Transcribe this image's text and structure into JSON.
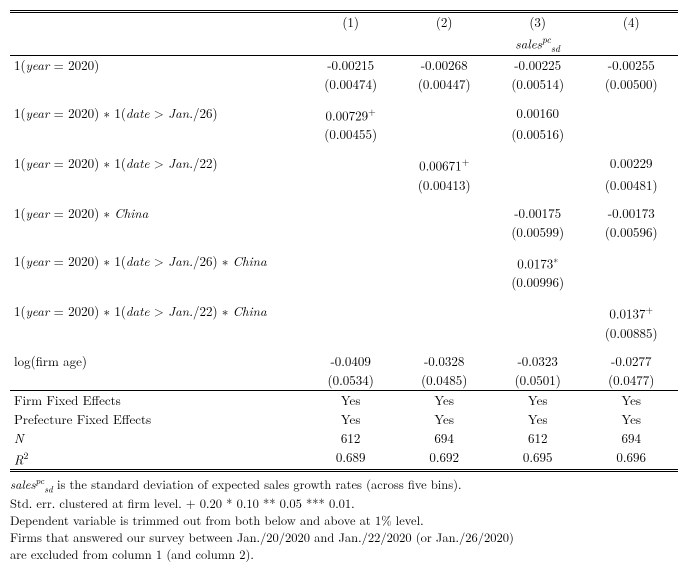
{
  "header": {
    "c1": "(1)",
    "c2": "(2)",
    "c3": "(3)",
    "c4": "(4)",
    "dep_html": "sales<sup style='font-style:italic'>pc</sup><sub>sd</sub>"
  },
  "rows": [
    {
      "label_html": "1(<span class='ital'>year</span> = 2020)",
      "c1": "-0.00215",
      "c2": "-0.00268",
      "c3": "-0.00225",
      "c4": "-0.00255",
      "se1": "(0.00474)",
      "se2": "(0.00447)",
      "se3": "(0.00514)",
      "se4": "(0.00500)"
    },
    {
      "label_html": "1(<span class='ital'>year</span> = 2020) ∗ 1(<span class='ital'>date</span> > <span class='ital'>Jan.</span>/26)",
      "c1": "0.00729<span class='sup'>+</span>",
      "c2": "",
      "c3": "0.00160",
      "c4": "",
      "se1": "(0.00455)",
      "se2": "",
      "se3": "(0.00516)",
      "se4": ""
    },
    {
      "label_html": "1(<span class='ital'>year</span> = 2020) ∗ 1(<span class='ital'>date</span> > <span class='ital'>Jan.</span>/22)",
      "c1": "",
      "c2": "0.00671<span class='sup'>+</span>",
      "c3": "",
      "c4": "0.00229",
      "se1": "",
      "se2": "(0.00413)",
      "se3": "",
      "se4": "(0.00481)"
    },
    {
      "label_html": "1(<span class='ital'>year</span> = 2020) ∗ <span class='ital'>China</span>",
      "c1": "",
      "c2": "",
      "c3": "-0.00175",
      "c4": "-0.00173",
      "se1": "",
      "se2": "",
      "se3": "(0.00599)",
      "se4": "(0.00596)"
    },
    {
      "label_html": "1(<span class='ital'>year</span> = 2020) ∗ 1(<span class='ital'>date</span> > <span class='ital'>Jan.</span>/26) ∗ <span class='ital'>China</span>",
      "c1": "",
      "c2": "",
      "c3": "0.0173<span class='sup'>∗</span>",
      "c4": "",
      "se1": "",
      "se2": "",
      "se3": "(0.00996)",
      "se4": ""
    },
    {
      "label_html": "1(<span class='ital'>year</span> = 2020) ∗ 1(<span class='ital'>date</span> > <span class='ital'>Jan.</span>/22) ∗ <span class='ital'>China</span>",
      "c1": "",
      "c2": "",
      "c3": "",
      "c4": "0.0137<span class='sup'>+</span>",
      "se1": "",
      "se2": "",
      "se3": "",
      "se4": "(0.00885)"
    },
    {
      "label_html": "log(firm age)",
      "c1": "-0.0409",
      "c2": "-0.0328",
      "c3": "-0.0323",
      "c4": "-0.0277",
      "se1": "(0.0534)",
      "se2": "(0.0485)",
      "se3": "(0.0501)",
      "se4": "(0.0477)"
    }
  ],
  "fixed": [
    {
      "label": "Firm Fixed Effects",
      "c1": "Yes",
      "c2": "Yes",
      "c3": "Yes",
      "c4": "Yes"
    },
    {
      "label": "Prefecture Fixed Effects",
      "c1": "Yes",
      "c2": "Yes",
      "c3": "Yes",
      "c4": "Yes"
    },
    {
      "label_html": "<span class='ital'>N</span>",
      "c1": "612",
      "c2": "694",
      "c3": "612",
      "c4": "694"
    },
    {
      "label_html": "<span class='ital'>R</span><span class='sup'>2</span>",
      "c1": "0.689",
      "c2": "0.692",
      "c3": "0.695",
      "c4": "0.696"
    }
  ],
  "notes": [
    "<span class='ital'>sales</span><span class='sup' style='font-style:italic'>pc</span><span class='sub'>sd</span> is the standard deviation of expected sales growth rates (across five bins).",
    "Std. err. clustered at firm level. + 0.20 * 0.10 ** 0.05 *** 0.01.",
    "Dependent variable is trimmed out from both below and above at 1% level.",
    "Firms that answered our survey between Jan./20/2020 and Jan./22/2020 (or Jan./26/2020)",
    "are excluded from column 1 (and column 2)."
  ]
}
